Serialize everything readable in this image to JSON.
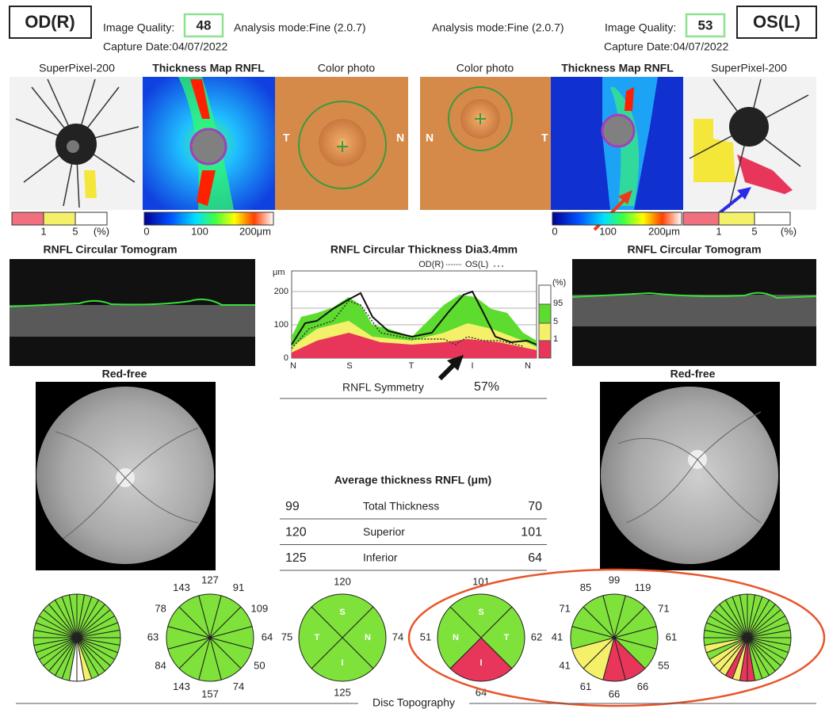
{
  "header": {
    "od": {
      "eye": "OD(R)",
      "quality_label": "Image Quality:",
      "quality": 48,
      "mode": "Analysis mode:Fine (2.0.7)",
      "date": "Capture Date:04/07/2022"
    },
    "os": {
      "eye": "OS(L)",
      "quality_label": "Image Quality:",
      "quality": 53,
      "mode": "Analysis mode:Fine (2.0.7)",
      "date": "Capture Date:04/07/2022"
    }
  },
  "image_labels": [
    "SuperPixel-200",
    "Thickness Map RNFL",
    "Color photo",
    "Color photo",
    "Thickness Map RNFL",
    "SuperPixel-200"
  ],
  "photo_side_labels": [
    "T",
    "N",
    "N",
    "T"
  ],
  "percent_scale": {
    "ticks": [
      1,
      5
    ],
    "unit": "(%)"
  },
  "thickness_scale": {
    "ticks": [
      0,
      100
    ],
    "end": "200μm"
  },
  "tomogram_title": "RNFL Circular Tomogram",
  "thickness_chart": {
    "title": "RNFL Circular Thickness Dia3.4mm",
    "legend": [
      "OD(R)",
      "OS(L)"
    ],
    "unit": "μm",
    "yticks": [
      200,
      100,
      0
    ],
    "xlabels": [
      "N",
      "S",
      "T",
      "I",
      "N"
    ],
    "percent_legend": {
      "unit": "(%)",
      "levels": [
        95,
        5,
        1
      ]
    }
  },
  "symmetry": {
    "label": "RNFL Symmetry",
    "value": "57%"
  },
  "red_free": "Red-free",
  "average": {
    "title": "Average thickness RNFL (μm)",
    "rows": [
      {
        "od": 99,
        "label": "Total Thickness",
        "os": 70
      },
      {
        "od": 120,
        "label": "Superior",
        "os": 101
      },
      {
        "od": 125,
        "label": "Inferior",
        "os": 64
      }
    ]
  },
  "clock_od": {
    "values": [
      127,
      91,
      109,
      64,
      50,
      74,
      157,
      143,
      84,
      63,
      78,
      143
    ],
    "colors": [
      "#7ee23a",
      "#7ee23a",
      "#7ee23a",
      "#7ee23a",
      "#7ee23a",
      "#7ee23a",
      "#7ee23a",
      "#7ee23a",
      "#7ee23a",
      "#7ee23a",
      "#7ee23a",
      "#7ee23a"
    ]
  },
  "quadrant_od": {
    "labels": [
      "S",
      "N",
      "I",
      "T"
    ],
    "values": [
      120,
      74,
      125,
      75
    ],
    "colors": [
      "#7ee23a",
      "#7ee23a",
      "#7ee23a",
      "#7ee23a"
    ]
  },
  "quadrant_os": {
    "labels": [
      "S",
      "T",
      "I",
      "N"
    ],
    "values": [
      101,
      62,
      64,
      51
    ],
    "colors": [
      "#7ee23a",
      "#7ee23a",
      "#e8365a",
      "#7ee23a"
    ]
  },
  "clock_os": {
    "values": [
      99,
      119,
      71,
      61,
      55,
      66,
      66,
      61,
      41,
      41,
      71,
      85
    ],
    "colors": [
      "#7ee23a",
      "#7ee23a",
      "#7ee23a",
      "#7ee23a",
      "#7ee23a",
      "#e8365a",
      "#e8365a",
      "#f5f06a",
      "#f5f06a",
      "#7ee23a",
      "#7ee23a",
      "#7ee23a"
    ]
  },
  "footer": "Disc Topography"
}
